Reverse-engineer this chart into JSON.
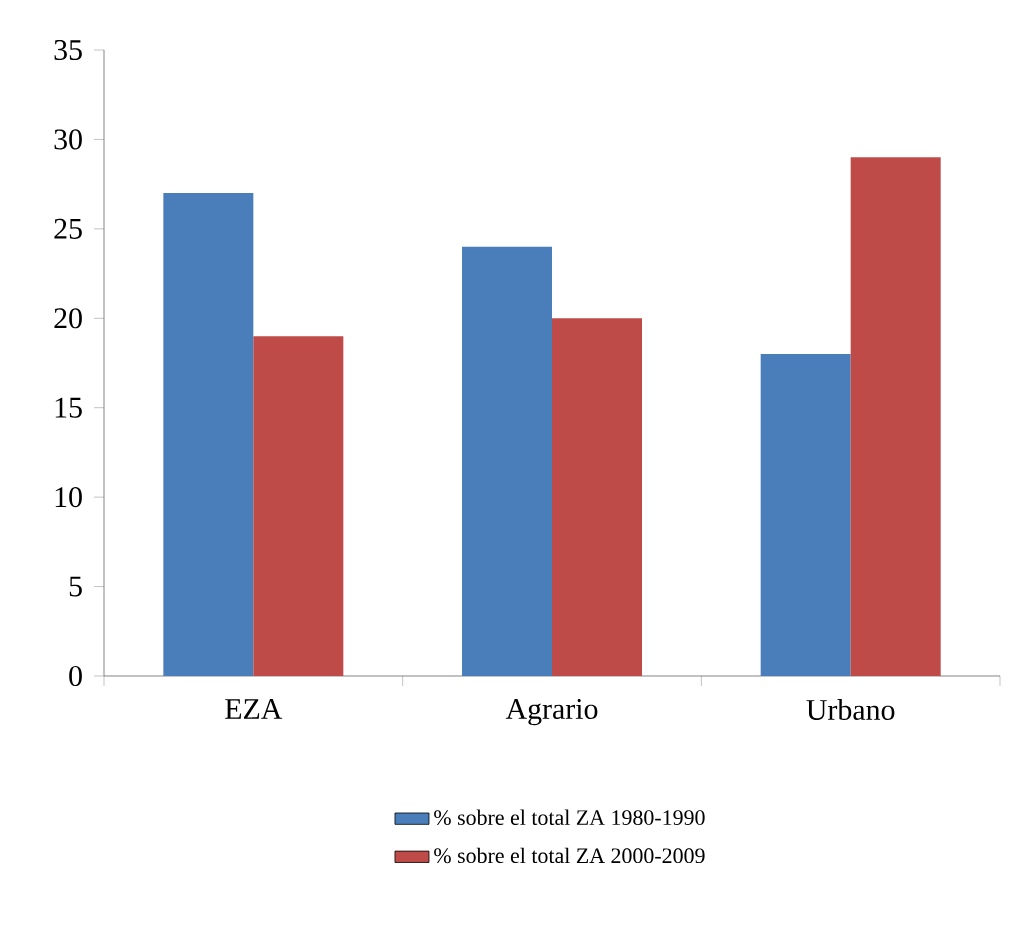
{
  "chart_data": {
    "type": "bar",
    "categories": [
      "EZA",
      "Agrario",
      "Urbano"
    ],
    "series": [
      {
        "name": "% sobre el total ZA 1980-1990",
        "color": "#4a7ebb",
        "values": [
          27,
          24,
          18
        ]
      },
      {
        "name": "% sobre el total ZA 2000-2009",
        "color": "#be4b48",
        "values": [
          19,
          20,
          29
        ]
      }
    ],
    "ylim": [
      0,
      35
    ],
    "yticks": [
      0,
      5,
      10,
      15,
      20,
      25,
      30,
      35
    ],
    "grid": false,
    "legend": "bottom"
  }
}
